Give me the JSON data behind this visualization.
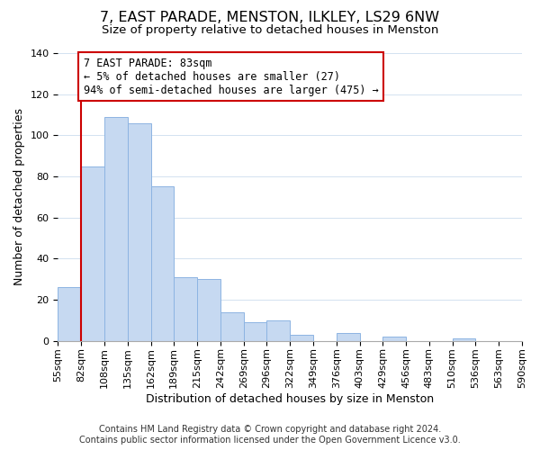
{
  "title": "7, EAST PARADE, MENSTON, ILKLEY, LS29 6NW",
  "subtitle": "Size of property relative to detached houses in Menston",
  "xlabel": "Distribution of detached houses by size in Menston",
  "ylabel": "Number of detached properties",
  "bin_labels": [
    "55sqm",
    "82sqm",
    "108sqm",
    "135sqm",
    "162sqm",
    "189sqm",
    "215sqm",
    "242sqm",
    "269sqm",
    "296sqm",
    "322sqm",
    "349sqm",
    "376sqm",
    "403sqm",
    "429sqm",
    "456sqm",
    "483sqm",
    "510sqm",
    "536sqm",
    "563sqm",
    "590sqm"
  ],
  "bar_values": [
    26,
    85,
    109,
    106,
    75,
    31,
    30,
    14,
    9,
    10,
    3,
    0,
    4,
    0,
    2,
    0,
    0,
    1,
    0,
    0
  ],
  "bar_color": "#c6d9f1",
  "bar_edge_color": "#8db4e2",
  "vline_x": 1,
  "vline_color": "#cc0000",
  "annotation_line1": "7 EAST PARADE: 83sqm",
  "annotation_line2": "← 5% of detached houses are smaller (27)",
  "annotation_line3": "94% of semi-detached houses are larger (475) →",
  "annotation_box_color": "#cc0000",
  "ylim": [
    0,
    140
  ],
  "yticks": [
    0,
    20,
    40,
    60,
    80,
    100,
    120,
    140
  ],
  "footer_line1": "Contains HM Land Registry data © Crown copyright and database right 2024.",
  "footer_line2": "Contains public sector information licensed under the Open Government Licence v3.0.",
  "title_fontsize": 11.5,
  "subtitle_fontsize": 9.5,
  "axis_label_fontsize": 9,
  "tick_fontsize": 8,
  "annotation_fontsize": 8.5,
  "footer_fontsize": 7
}
